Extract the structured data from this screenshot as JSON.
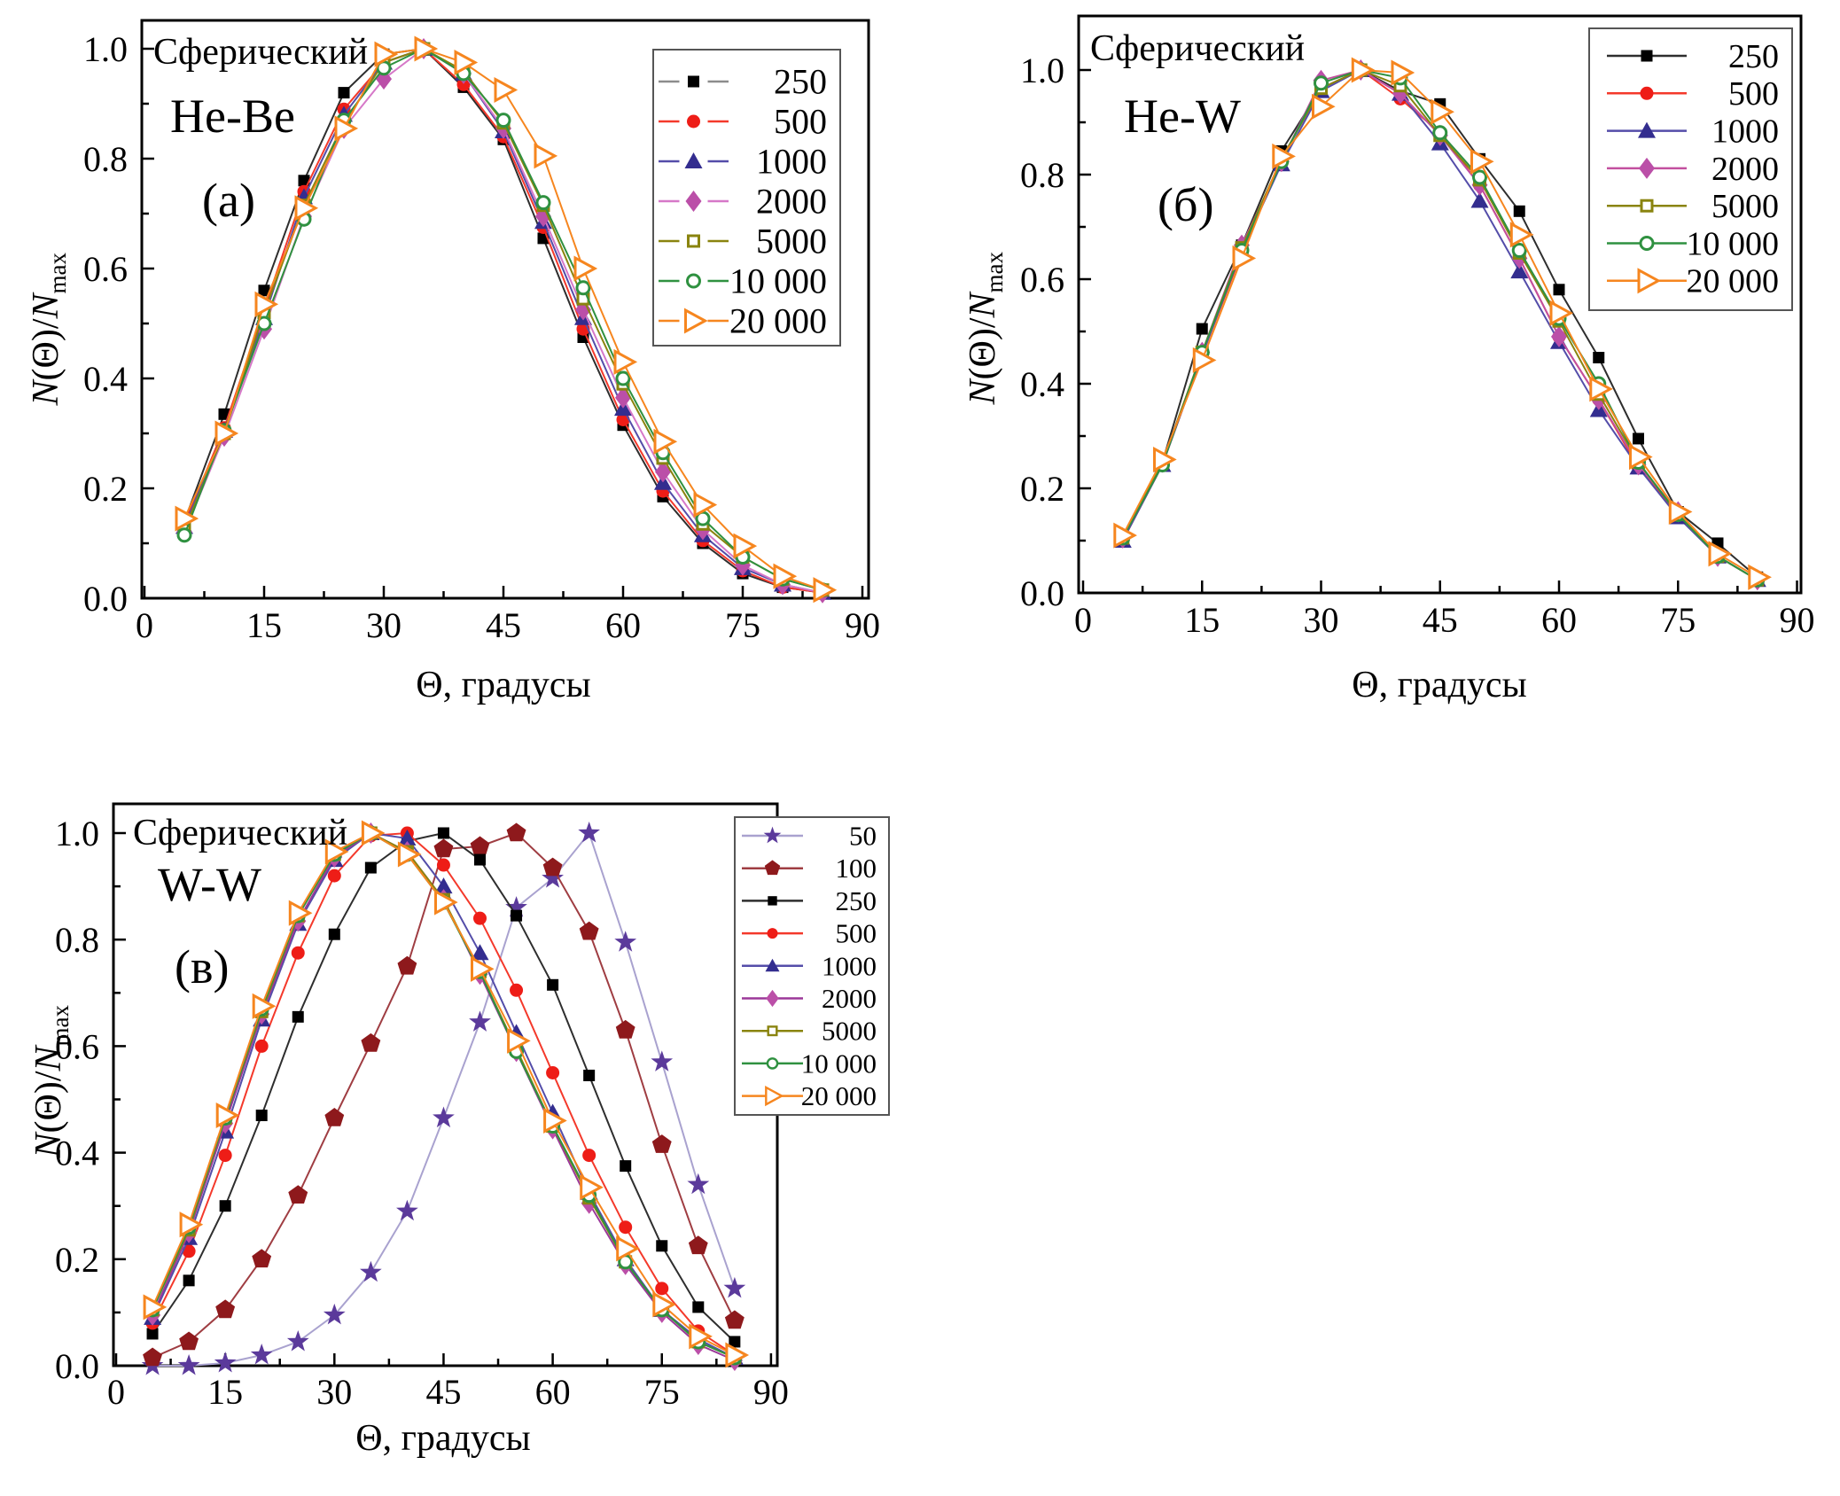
{
  "figure": {
    "background": "#ffffff",
    "axis_color": "#000000",
    "legend_border_color": "#555555"
  },
  "chart_data": [
    {
      "id": "a",
      "type": "line",
      "title": "Сферический",
      "subtitle": "He-Be",
      "panel_label": "(а)",
      "xlabel": "Θ, градусы",
      "ylabel": {
        "n1": "N",
        "mid": "(Θ)/",
        "n2": "N",
        "sub": "max"
      },
      "xlim": [
        0,
        90
      ],
      "ylim": [
        0,
        1.0
      ],
      "x_ticks": [
        "0",
        "15",
        "30",
        "45",
        "60",
        "75",
        "90"
      ],
      "x_tick_values": [
        0,
        15,
        30,
        45,
        60,
        75,
        90
      ],
      "y_ticks": [
        "0.0",
        "0.2",
        "0.4",
        "0.6",
        "0.8",
        "1.0"
      ],
      "y_tick_values": [
        0,
        0.2,
        0.4,
        0.6,
        0.8,
        1.0
      ],
      "grid": false,
      "legend_position": "top-right",
      "x": [
        5,
        10,
        15,
        20,
        25,
        30,
        35,
        40,
        45,
        50,
        55,
        60,
        65,
        70,
        75,
        80,
        85
      ],
      "series": [
        {
          "name": "250",
          "marker": "square",
          "open": false,
          "color": "#000000",
          "line": "#2e2e2e",
          "legend_line": "#8c8c8c",
          "values": [
            0.14,
            0.335,
            0.56,
            0.76,
            0.92,
            0.99,
            1.0,
            0.93,
            0.835,
            0.655,
            0.475,
            0.315,
            0.185,
            0.1,
            0.045,
            0.02,
            0.01
          ]
        },
        {
          "name": "500",
          "marker": "circle",
          "open": false,
          "color": "#ee1d17",
          "line": "#f4392b",
          "values": [
            0.135,
            0.31,
            0.525,
            0.74,
            0.89,
            0.975,
            1.0,
            0.935,
            0.84,
            0.675,
            0.49,
            0.325,
            0.195,
            0.105,
            0.05,
            0.02,
            0.01
          ]
        },
        {
          "name": "1000",
          "marker": "triangle-up",
          "open": false,
          "color": "#332d8f",
          "line": "#544da9",
          "values": [
            0.13,
            0.305,
            0.51,
            0.73,
            0.88,
            0.975,
            1.0,
            0.955,
            0.85,
            0.685,
            0.51,
            0.345,
            0.21,
            0.115,
            0.055,
            0.025,
            0.01
          ]
        },
        {
          "name": "2000",
          "marker": "diamond",
          "open": false,
          "color": "#bb4fa8",
          "line": "#d678c8",
          "values": [
            0.12,
            0.295,
            0.49,
            0.695,
            0.855,
            0.945,
            1.0,
            0.955,
            0.855,
            0.695,
            0.525,
            0.365,
            0.23,
            0.125,
            0.06,
            0.025,
            0.01
          ]
        },
        {
          "name": "5000",
          "marker": "open-square",
          "open": true,
          "color": "#8a840f",
          "line": "#8a840f",
          "values": [
            0.125,
            0.3,
            0.52,
            0.715,
            0.865,
            0.975,
            1.0,
            0.96,
            0.865,
            0.715,
            0.545,
            0.39,
            0.255,
            0.135,
            0.075,
            0.035,
            0.015
          ]
        },
        {
          "name": "10 000",
          "marker": "open-circle",
          "open": true,
          "color": "#2f9140",
          "line": "#2f9140",
          "values": [
            0.115,
            0.305,
            0.5,
            0.69,
            0.87,
            0.965,
            1.0,
            0.955,
            0.87,
            0.72,
            0.565,
            0.4,
            0.265,
            0.145,
            0.075,
            0.035,
            0.015
          ]
        },
        {
          "name": "20 000",
          "marker": "open-right-triangle",
          "open": true,
          "color": "#f6861f",
          "line": "#f6861f",
          "values": [
            0.145,
            0.3,
            0.535,
            0.71,
            0.855,
            0.99,
            1.0,
            0.975,
            0.925,
            0.805,
            0.6,
            0.43,
            0.285,
            0.17,
            0.095,
            0.04,
            0.015
          ]
        }
      ]
    },
    {
      "id": "b",
      "type": "line",
      "title": "Сферический",
      "subtitle": "He-W",
      "panel_label": "(б)",
      "xlabel": "Θ, градусы",
      "ylabel": {
        "n1": "N",
        "mid": "(Θ)/",
        "n2": "N",
        "sub": "max"
      },
      "xlim": [
        0,
        90
      ],
      "ylim": [
        0,
        1.0
      ],
      "x_ticks": [
        "0",
        "15",
        "30",
        "45",
        "60",
        "75",
        "90"
      ],
      "x_tick_values": [
        0,
        15,
        30,
        45,
        60,
        75,
        90
      ],
      "y_ticks": [
        "0.0",
        "0.2",
        "0.4",
        "0.6",
        "0.8",
        "1.0"
      ],
      "y_tick_values": [
        0,
        0.2,
        0.4,
        0.6,
        0.8,
        1.0
      ],
      "grid": false,
      "legend_position": "top-right",
      "x": [
        5,
        10,
        15,
        20,
        25,
        30,
        35,
        40,
        45,
        50,
        55,
        60,
        65,
        70,
        75,
        80,
        85
      ],
      "series": [
        {
          "name": "250",
          "marker": "square",
          "open": false,
          "color": "#000000",
          "line": "#2e2e2e",
          "values": [
            0.1,
            0.25,
            0.505,
            0.665,
            0.845,
            0.965,
            1.0,
            0.96,
            0.935,
            0.83,
            0.73,
            0.58,
            0.45,
            0.295,
            0.155,
            0.095,
            0.03
          ]
        },
        {
          "name": "500",
          "marker": "circle",
          "open": false,
          "color": "#ee1d17",
          "line": "#f4392b",
          "values": [
            0.1,
            0.245,
            0.455,
            0.65,
            0.83,
            0.965,
            1.0,
            0.945,
            0.88,
            0.78,
            0.64,
            0.49,
            0.37,
            0.24,
            0.15,
            0.07,
            0.025
          ]
        },
        {
          "name": "1000",
          "marker": "triangle-up",
          "open": false,
          "color": "#332d8f",
          "line": "#544da9",
          "values": [
            0.1,
            0.245,
            0.455,
            0.655,
            0.82,
            0.96,
            1.0,
            0.955,
            0.86,
            0.75,
            0.615,
            0.48,
            0.35,
            0.24,
            0.145,
            0.07,
            0.025
          ]
        },
        {
          "name": "2000",
          "marker": "diamond",
          "open": false,
          "color": "#bb4fa8",
          "line": "#c2509f",
          "values": [
            0.105,
            0.25,
            0.46,
            0.665,
            0.825,
            0.98,
            1.0,
            0.955,
            0.875,
            0.78,
            0.64,
            0.49,
            0.37,
            0.245,
            0.155,
            0.07,
            0.025
          ]
        },
        {
          "name": "5000",
          "marker": "open-square",
          "open": true,
          "color": "#8a840f",
          "line": "#8a840f",
          "values": [
            0.105,
            0.25,
            0.46,
            0.66,
            0.83,
            0.965,
            1.0,
            0.97,
            0.875,
            0.79,
            0.65,
            0.52,
            0.38,
            0.25,
            0.15,
            0.07,
            0.025
          ]
        },
        {
          "name": "10 000",
          "marker": "open-circle",
          "open": true,
          "color": "#2f9140",
          "line": "#2f9140",
          "values": [
            0.105,
            0.245,
            0.46,
            0.655,
            0.825,
            0.975,
            1.0,
            0.985,
            0.88,
            0.795,
            0.655,
            0.525,
            0.4,
            0.25,
            0.15,
            0.07,
            0.025
          ]
        },
        {
          "name": "20 000",
          "marker": "open-right-triangle",
          "open": true,
          "color": "#f6861f",
          "line": "#f6861f",
          "values": [
            0.11,
            0.255,
            0.445,
            0.64,
            0.835,
            0.93,
            1.0,
            0.995,
            0.92,
            0.825,
            0.685,
            0.535,
            0.39,
            0.26,
            0.155,
            0.075,
            0.03
          ]
        }
      ]
    },
    {
      "id": "v",
      "type": "line",
      "title": "Сферический",
      "subtitle": "W-W",
      "panel_label": "(в)",
      "xlabel": "Θ, градусы",
      "ylabel": {
        "n1": "N",
        "mid": "(Θ)/",
        "n2": "N",
        "sub": "max"
      },
      "xlim": [
        0,
        90
      ],
      "ylim": [
        0,
        1.0
      ],
      "x_ticks": [
        "0",
        "15",
        "30",
        "45",
        "60",
        "75",
        "90"
      ],
      "x_tick_values": [
        0,
        15,
        30,
        45,
        60,
        75,
        90
      ],
      "y_ticks": [
        "0.0",
        "0.2",
        "0.4",
        "0.6",
        "0.8",
        "1.0"
      ],
      "y_tick_values": [
        0,
        0.2,
        0.4,
        0.6,
        0.8,
        1.0
      ],
      "grid": false,
      "legend_position": "top-right",
      "x": [
        5,
        10,
        15,
        20,
        25,
        30,
        35,
        40,
        45,
        50,
        55,
        60,
        65,
        70,
        75,
        80,
        85
      ],
      "series": [
        {
          "name": "50",
          "marker": "star",
          "open": false,
          "color": "#5b3a9b",
          "line": "#a9a2cf",
          "values": [
            0.0,
            0.0,
            0.005,
            0.02,
            0.045,
            0.095,
            0.175,
            0.29,
            0.465,
            0.645,
            0.86,
            0.915,
            1.0,
            0.795,
            0.57,
            0.34,
            0.145
          ]
        },
        {
          "name": "100",
          "marker": "pentagon",
          "open": false,
          "color": "#8e191c",
          "line": "#9f3d42",
          "values": [
            0.015,
            0.045,
            0.105,
            0.2,
            0.32,
            0.465,
            0.605,
            0.75,
            0.97,
            0.975,
            1.0,
            0.935,
            0.815,
            0.63,
            0.415,
            0.225,
            0.085
          ]
        },
        {
          "name": "250",
          "marker": "square",
          "open": false,
          "color": "#000000",
          "line": "#2e2e2e",
          "values": [
            0.06,
            0.16,
            0.3,
            0.47,
            0.655,
            0.81,
            0.935,
            0.985,
            1.0,
            0.95,
            0.845,
            0.715,
            0.545,
            0.375,
            0.225,
            0.11,
            0.045
          ]
        },
        {
          "name": "500",
          "marker": "circle",
          "open": false,
          "color": "#ee1d17",
          "line": "#f4392b",
          "values": [
            0.08,
            0.215,
            0.395,
            0.6,
            0.775,
            0.92,
            0.995,
            1.0,
            0.94,
            0.84,
            0.705,
            0.55,
            0.395,
            0.26,
            0.145,
            0.065,
            0.02
          ]
        },
        {
          "name": "1000",
          "marker": "triangle-up",
          "open": false,
          "color": "#332d8f",
          "line": "#544da9",
          "values": [
            0.09,
            0.24,
            0.44,
            0.65,
            0.83,
            0.95,
            1.0,
            0.99,
            0.9,
            0.775,
            0.625,
            0.475,
            0.325,
            0.2,
            0.105,
            0.05,
            0.015
          ]
        },
        {
          "name": "2000",
          "marker": "diamond",
          "open": false,
          "color": "#bb4fa8",
          "line": "#9b3899",
          "values": [
            0.095,
            0.25,
            0.455,
            0.66,
            0.835,
            0.955,
            1.0,
            0.965,
            0.875,
            0.735,
            0.59,
            0.445,
            0.305,
            0.19,
            0.1,
            0.04,
            0.01
          ]
        },
        {
          "name": "5000",
          "marker": "open-square",
          "open": true,
          "color": "#8a840f",
          "line": "#8a840f",
          "values": [
            0.105,
            0.255,
            0.465,
            0.665,
            0.845,
            0.96,
            1.0,
            0.965,
            0.875,
            0.74,
            0.595,
            0.45,
            0.315,
            0.195,
            0.105,
            0.045,
            0.015
          ]
        },
        {
          "name": "10 000",
          "marker": "open-circle",
          "open": true,
          "color": "#2f9140",
          "line": "#2f9140",
          "values": [
            0.105,
            0.26,
            0.465,
            0.67,
            0.845,
            0.96,
            1.0,
            0.96,
            0.87,
            0.74,
            0.59,
            0.45,
            0.32,
            0.195,
            0.105,
            0.045,
            0.015
          ]
        },
        {
          "name": "20 000",
          "marker": "open-right-triangle",
          "open": true,
          "color": "#f6861f",
          "line": "#f6861f",
          "values": [
            0.11,
            0.265,
            0.47,
            0.675,
            0.85,
            0.965,
            1.0,
            0.96,
            0.87,
            0.745,
            0.61,
            0.46,
            0.335,
            0.22,
            0.115,
            0.055,
            0.02
          ]
        }
      ]
    }
  ]
}
